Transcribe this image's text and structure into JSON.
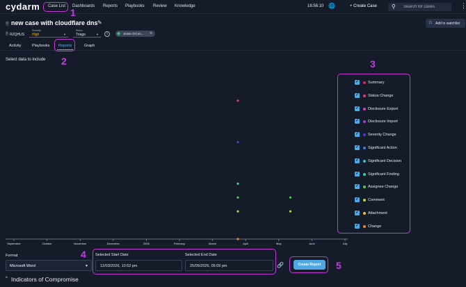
{
  "app": {
    "logo": "cydarm"
  },
  "nav": {
    "items": [
      "Case List",
      "Dashboards",
      "Reports",
      "Playbooks",
      "Review",
      "Knowledge"
    ],
    "clock": "16:56:10",
    "create_case": "+ Create Case",
    "search_placeholder": "Search for cases"
  },
  "case": {
    "title": "new case with cloudflare dns",
    "id": "RZQHUS",
    "severity_caption": "Severity",
    "severity_value": "High",
    "status_caption": "Status",
    "status_value": "Triage",
    "assignee_initial": "J",
    "assignee": "Jesse O'Con...",
    "watchlist_label": "Add to watchlist"
  },
  "tabs": [
    "Activity",
    "Playbooks",
    "Reports",
    "Graph"
  ],
  "active_tab": "Reports",
  "select_label": "Select data to include",
  "annotations": [
    "1",
    "2",
    "3",
    "4",
    "5"
  ],
  "chart_data": {
    "type": "scatter",
    "x_axis_ticks": [
      "September",
      "October",
      "November",
      "December",
      "2026",
      "February",
      "March",
      "April",
      "May",
      "June",
      "July"
    ],
    "xlim": [
      "2025-09-01",
      "2026-07-01"
    ],
    "points": [
      {
        "x": "2026-03-25",
        "series": "Status Change"
      },
      {
        "x": "2026-03-25",
        "series": "Severity Change"
      },
      {
        "x": "2026-03-25",
        "series": "Significant Finding"
      },
      {
        "x": "2026-03-25",
        "series": "Assignee Change"
      },
      {
        "x": "2026-03-25",
        "series": "Comment"
      },
      {
        "x": "2026-03-25",
        "series": "Change"
      },
      {
        "x": "2026-05-12",
        "series": "Assignee Change"
      },
      {
        "x": "2026-05-12",
        "series": "Comment"
      }
    ],
    "legend": [
      {
        "label": "Summary",
        "color": "#e0245e",
        "checked": true
      },
      {
        "label": "Status Change",
        "color": "#e53a7a",
        "checked": true
      },
      {
        "label": "Disclosure Export",
        "color": "#d63fb0",
        "checked": true
      },
      {
        "label": "Disclosure Import",
        "color": "#a23ed6",
        "checked": true
      },
      {
        "label": "Severity Change",
        "color": "#4b3bd6",
        "checked": true
      },
      {
        "label": "Significant Action",
        "color": "#3b7fe0",
        "checked": true
      },
      {
        "label": "Significant Decision",
        "color": "#2ec5d6",
        "checked": true
      },
      {
        "label": "Significant Finding",
        "color": "#2fd6a8",
        "checked": true
      },
      {
        "label": "Assignee Change",
        "color": "#4ccd4c",
        "checked": true
      },
      {
        "label": "Comment",
        "color": "#b9e02e",
        "checked": true
      },
      {
        "label": "Attachment",
        "color": "#e6c62e",
        "checked": true
      },
      {
        "label": "Change",
        "color": "#e88a2e",
        "checked": true
      }
    ]
  },
  "report_form": {
    "format_label": "Format",
    "format_value": "Microsoft Word",
    "start_label": "Selected Start Date",
    "start_value": "12/03/2026, 10:52 pm",
    "end_label": "Selected End Date",
    "end_value": "25/05/2026, 05:09 pm",
    "create_button": "Create Report"
  },
  "ioc_heading": "Indicators of Compromise"
}
